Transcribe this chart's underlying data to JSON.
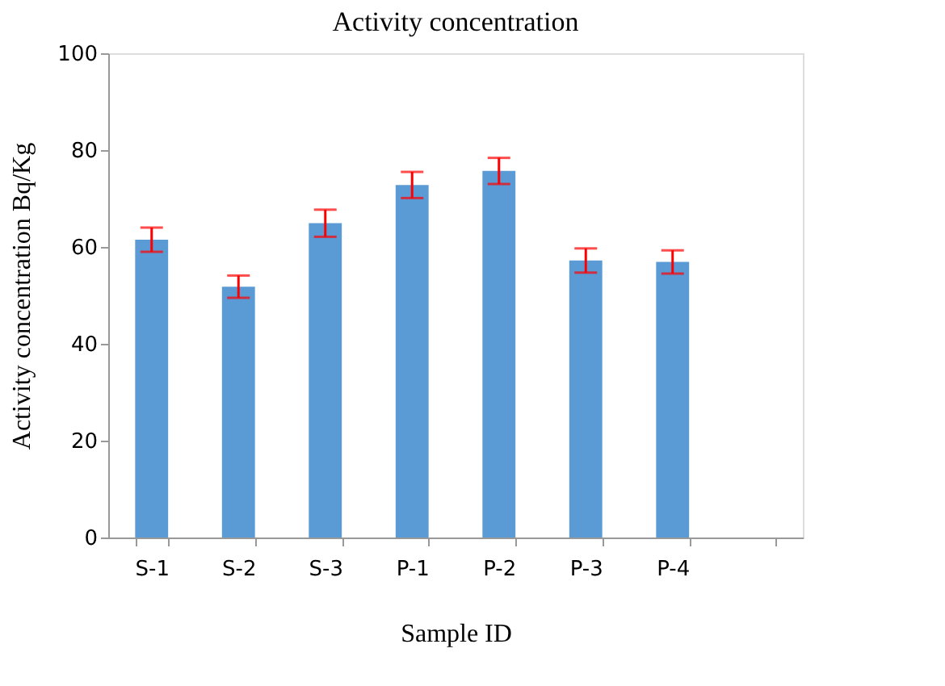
{
  "chart_data": {
    "type": "bar",
    "title": "Activity concentration",
    "xlabel": "Sample ID",
    "ylabel": "Activity concentration Bq/Kg",
    "categories": [
      "S-1",
      "S-2",
      "S-3",
      "P-1",
      "P-2",
      "P-3",
      "P-4",
      null
    ],
    "series": [
      {
        "color": "#5b9bd5",
        "values": [
          61.5,
          51.8,
          64.9,
          72.8,
          75.7,
          57.2,
          56.9,
          null
        ],
        "errors": [
          2.5,
          2.3,
          2.8,
          2.7,
          2.7,
          2.5,
          2.4,
          null
        ]
      }
    ],
    "ylim": [
      0,
      100
    ],
    "yticks": [
      0,
      20,
      40,
      60,
      80,
      100
    ],
    "grid": false
  }
}
